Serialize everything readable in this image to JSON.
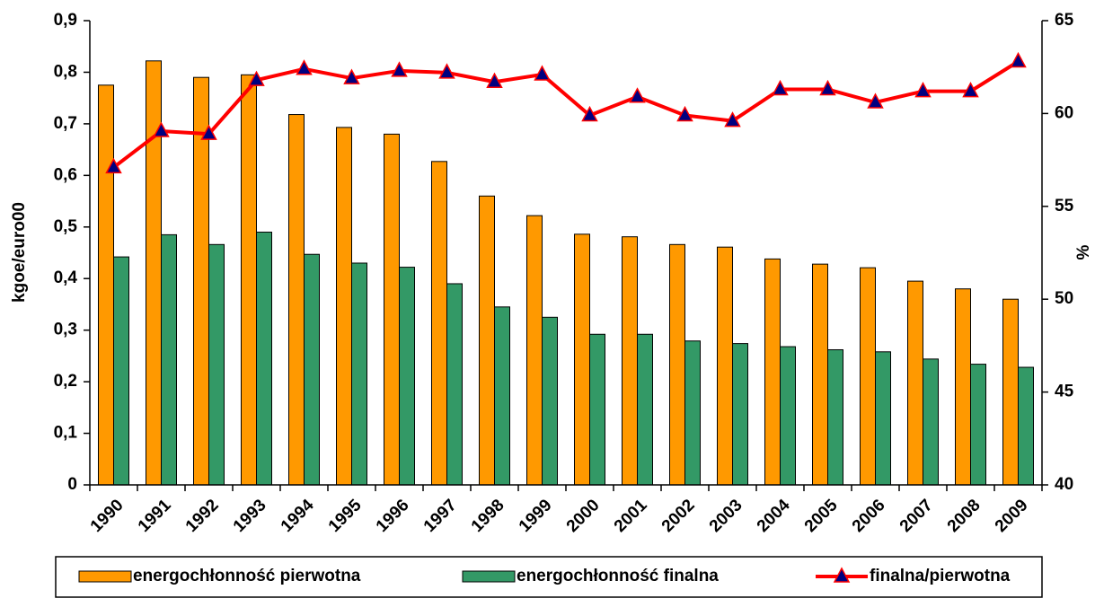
{
  "chart_data": {
    "type": "bar-line",
    "y_label": "kgoe/euro00",
    "y2_label": "%",
    "categories": [
      "1990",
      "1991",
      "1992",
      "1993",
      "1994",
      "1995",
      "1996",
      "1997",
      "1998",
      "1999",
      "2000",
      "2001",
      "2002",
      "2003",
      "2004",
      "2005",
      "2006",
      "2007",
      "2008",
      "2009"
    ],
    "series": [
      {
        "name": "energochłonność pierwotna",
        "type": "bar",
        "color": "#ff9900",
        "values": [
          0.775,
          0.822,
          0.79,
          0.795,
          0.718,
          0.693,
          0.68,
          0.627,
          0.56,
          0.522,
          0.486,
          0.481,
          0.466,
          0.461,
          0.438,
          0.428,
          0.421,
          0.395,
          0.38,
          0.36
        ]
      },
      {
        "name": "energochłonność finalna",
        "type": "bar",
        "color": "#339966",
        "values": [
          0.442,
          0.485,
          0.466,
          0.49,
          0.447,
          0.43,
          0.422,
          0.39,
          0.345,
          0.325,
          0.292,
          0.292,
          0.279,
          0.274,
          0.268,
          0.262,
          0.258,
          0.244,
          0.234,
          0.228
        ]
      },
      {
        "name": "finalna/pierwotna",
        "type": "line",
        "axis": "y2",
        "color": "#ff0000",
        "marker_color": "#000080",
        "values": [
          57.1,
          59.05,
          58.9,
          61.8,
          62.4,
          61.9,
          62.3,
          62.2,
          61.7,
          62.1,
          59.9,
          60.9,
          59.9,
          59.6,
          61.3,
          61.3,
          60.6,
          61.2,
          61.2,
          62.8
        ]
      }
    ],
    "ylim": [
      0,
      0.9
    ],
    "yticks": [
      {
        "value": 0,
        "label": "0"
      },
      {
        "value": 0.1,
        "label": "0,1"
      },
      {
        "value": 0.2,
        "label": "0,2"
      },
      {
        "value": 0.3,
        "label": "0,3"
      },
      {
        "value": 0.4,
        "label": "0,4"
      },
      {
        "value": 0.5,
        "label": "0,5"
      },
      {
        "value": 0.6,
        "label": "0,6"
      },
      {
        "value": 0.7,
        "label": "0,7"
      },
      {
        "value": 0.8,
        "label": "0,8"
      },
      {
        "value": 0.9,
        "label": "0,9"
      }
    ],
    "y2lim": [
      40,
      65
    ],
    "y2ticks": [
      40,
      45,
      50,
      55,
      60,
      65
    ],
    "grid": false,
    "legend": "bottom"
  }
}
